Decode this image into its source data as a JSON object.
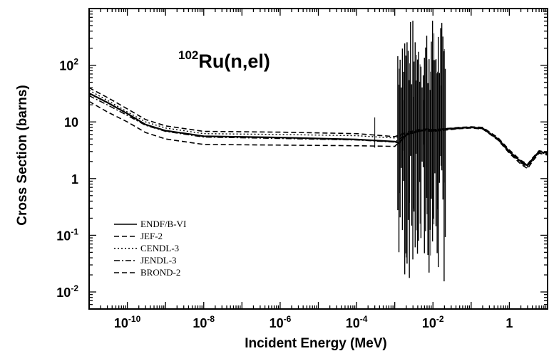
{
  "chart_data": {
    "type": "line",
    "title": {
      "superscript": "102",
      "main": "Ru(n,el)"
    },
    "xlabel": "Incident Energy (MeV)",
    "ylabel": "Cross Section (barns)",
    "xscale": "log",
    "yscale": "log",
    "xlim": [
      1e-11,
      10
    ],
    "ylim": [
      0.005,
      1000
    ],
    "grid": false,
    "legend_position": "bottom-left",
    "x_ticks": [
      {
        "base": "10",
        "exp": "-10",
        "value": 1e-10
      },
      {
        "base": "10",
        "exp": "-8",
        "value": 1e-08
      },
      {
        "base": "10",
        "exp": "-6",
        "value": 1e-06
      },
      {
        "base": "10",
        "exp": "-4",
        "value": 0.0001
      },
      {
        "base": "10",
        "exp": "-2",
        "value": 0.01
      },
      {
        "base": "1",
        "exp": "",
        "value": 1
      }
    ],
    "y_ticks": [
      {
        "base": "10",
        "exp": "2",
        "value": 100
      },
      {
        "base": "10",
        "exp": "",
        "value": 10
      },
      {
        "base": "1",
        "exp": "",
        "value": 1
      },
      {
        "base": "10",
        "exp": "-1",
        "value": 0.1
      },
      {
        "base": "10",
        "exp": "-2",
        "value": 0.01
      }
    ],
    "series": [
      {
        "name": "ENDF/B-VI",
        "style": "solid",
        "color": "#000000",
        "x": [
          1e-11,
          3e-11,
          1e-10,
          3e-10,
          1e-09,
          1e-08,
          1e-06,
          0.0001,
          0.001,
          0.0013,
          0.002,
          0.003,
          0.005,
          0.007,
          0.01,
          0.02,
          0.05,
          0.1,
          0.2,
          0.5,
          1,
          2,
          3,
          4,
          6,
          10
        ],
        "y": [
          32,
          22,
          14,
          9,
          7,
          5.6,
          5.3,
          4.9,
          4.5,
          4.2,
          6,
          6.5,
          7,
          7.5,
          7,
          7.5,
          7.8,
          8,
          7.7,
          5,
          3,
          2,
          1.7,
          2.2,
          3,
          2.8
        ]
      },
      {
        "name": "JEF-2",
        "style": "dashed",
        "color": "#000000",
        "x": [
          1e-11,
          3e-11,
          1e-10,
          3e-10,
          1e-09,
          1e-08,
          1e-06,
          0.0001,
          0.001,
          0.002,
          0.005,
          0.01,
          0.05,
          0.1,
          0.2,
          0.5,
          1,
          2,
          3,
          4,
          6,
          10
        ],
        "y": [
          40,
          27,
          17,
          11,
          8.5,
          6.8,
          6.6,
          6.2,
          5.5,
          6.5,
          7.5,
          7.3,
          8,
          8.2,
          8,
          5.3,
          3.2,
          2.1,
          1.8,
          2.3,
          3.1,
          2.9
        ]
      },
      {
        "name": "CENDL-3",
        "style": "dotted",
        "color": "#000000",
        "x": [
          1e-11,
          3e-11,
          1e-10,
          3e-10,
          1e-09,
          1e-08,
          1e-06,
          0.0001,
          0.001,
          0.002,
          0.005,
          0.01,
          0.05,
          0.1,
          0.2,
          0.5,
          1,
          2,
          3,
          4,
          6,
          10
        ],
        "y": [
          36,
          24,
          15,
          10,
          7.8,
          6.2,
          6,
          5.7,
          5.2,
          6.2,
          7.2,
          7,
          7.9,
          8.1,
          7.8,
          5.1,
          3.1,
          2,
          1.75,
          2.2,
          3,
          2.8
        ]
      },
      {
        "name": "JENDL-3",
        "style": "dashdot",
        "color": "#000000",
        "x": [
          1e-11,
          3e-11,
          1e-10,
          3e-10,
          1e-09,
          1e-08,
          1e-06,
          0.0001,
          0.001,
          0.002,
          0.005,
          0.01,
          0.05,
          0.1,
          0.2,
          0.5,
          1,
          2,
          3,
          4,
          6,
          10
        ],
        "y": [
          29,
          20,
          13,
          8.7,
          6.8,
          5.4,
          5.1,
          4.8,
          4.4,
          6,
          7,
          6.9,
          7.7,
          7.9,
          7.6,
          4.9,
          2.9,
          1.9,
          1.6,
          2.1,
          2.9,
          2.7
        ]
      },
      {
        "name": "BROND-2",
        "style": "dashed",
        "color": "#000000",
        "x": [
          1e-11,
          3e-11,
          1e-10,
          3e-10,
          1e-09,
          1e-08,
          1e-06,
          0.0001,
          0.001,
          0.002,
          0.005,
          0.01,
          0.05,
          0.1,
          0.2,
          0.5,
          1,
          2,
          3,
          4,
          6,
          10
        ],
        "y": [
          23,
          15,
          10,
          6.5,
          5,
          4,
          3.9,
          3.8,
          3.7,
          5.8,
          7,
          6.8,
          7.6,
          7.8,
          7.5,
          4.8,
          2.8,
          1.8,
          1.5,
          2,
          2.8,
          2.6
        ]
      }
    ],
    "resonance_region": {
      "x_start": 0.0012,
      "x_end": 0.021,
      "max_y": 700,
      "min_y": 0.01,
      "count": 42
    }
  }
}
